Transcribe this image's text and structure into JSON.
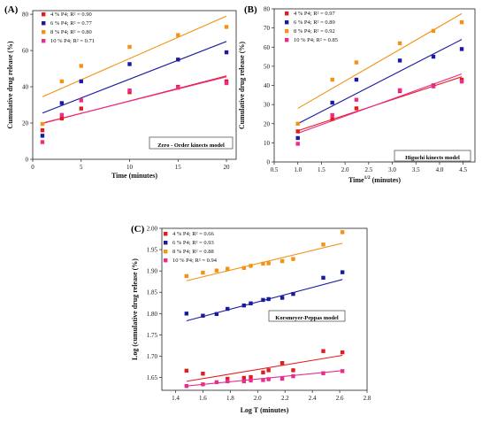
{
  "chart_data": [
    {
      "type": "scatter",
      "panel": "(A)",
      "xlabel": "Time (minutes)",
      "ylabel": "Cumulative drug release (%)",
      "xlim": [
        0,
        21
      ],
      "ylim": [
        0,
        82
      ],
      "xticks": [
        "0",
        "5",
        "10",
        "15",
        "20"
      ],
      "yticks": [
        "0",
        "20",
        "40",
        "60",
        "80"
      ],
      "model_label": "Zero - Order kinects model",
      "legend_placement": "top-left",
      "series": [
        {
          "name": "4 % P4; R² = 0.90",
          "color": "#e41a1c",
          "x": [
            1,
            3,
            5,
            10,
            15,
            20
          ],
          "y": [
            16,
            22.5,
            28,
            37,
            40,
            43
          ],
          "fit": [
            [
              1,
              19.8
            ],
            [
              20,
              46
            ]
          ]
        },
        {
          "name": "6 % P4; R² = 0.77",
          "color": "#1a1aa0",
          "x": [
            1,
            3,
            5,
            10,
            15,
            20
          ],
          "y": [
            13,
            31,
            43,
            52.5,
            55,
            59
          ],
          "fit": [
            [
              1,
              25.5
            ],
            [
              20,
              65
            ]
          ]
        },
        {
          "name": "8 % P4; R² = 0.80",
          "color": "#f39214",
          "x": [
            1,
            3,
            5,
            10,
            15,
            20
          ],
          "y": [
            19.5,
            43,
            51.5,
            62,
            68.5,
            73
          ],
          "fit": [
            [
              1,
              34.5
            ],
            [
              20,
              79
            ]
          ]
        },
        {
          "name": "10 % P4; R² = 0.71",
          "color": "#ea2c8c",
          "x": [
            1,
            3,
            5,
            10,
            15,
            20
          ],
          "y": [
            9.5,
            24.5,
            32.5,
            38,
            39.5,
            42
          ],
          "fit": [
            [
              1,
              20
            ],
            [
              20,
              45.5
            ]
          ]
        }
      ]
    },
    {
      "type": "scatter",
      "panel": "(B)",
      "xlabel": "Time",
      "xlabel_sup": "1/2",
      "xlabel_unit": "(minutes)",
      "ylabel": "Cumulative drug release (%)",
      "xlim": [
        0.5,
        4.75
      ],
      "ylim": [
        0,
        80
      ],
      "xticks": [
        "0.5",
        "1.0",
        "1.5",
        "2.0",
        "2.5",
        "3.0",
        "3.5",
        "4.0",
        "4.5"
      ],
      "yticks": [
        "0",
        "10",
        "20",
        "30",
        "40",
        "50",
        "60",
        "70",
        "80"
      ],
      "model_label": "Higuchi kinects model",
      "legend_placement": "top-left",
      "series": [
        {
          "name": "4 % P4; R² = 0.97",
          "color": "#e41a1c",
          "x": [
            1,
            1.73,
            2.24,
            3.16,
            3.87,
            4.47
          ],
          "y": [
            16,
            22.5,
            28,
            37,
            40,
            43
          ],
          "fit": [
            [
              1,
              16.3
            ],
            [
              4.47,
              44.5
            ]
          ]
        },
        {
          "name": "6 % P4; R² = 0.89",
          "color": "#1a1aa0",
          "x": [
            1,
            1.73,
            2.24,
            3.16,
            3.87,
            4.47
          ],
          "y": [
            12.5,
            31,
            43,
            53,
            55,
            59
          ],
          "fit": [
            [
              1,
              20
            ],
            [
              4.47,
              64
            ]
          ]
        },
        {
          "name": "8 % P4; R² = 0.92",
          "color": "#f39214",
          "x": [
            1,
            1.73,
            2.24,
            3.16,
            3.87,
            4.47
          ],
          "y": [
            20,
            43,
            52,
            62,
            68.5,
            73
          ],
          "fit": [
            [
              1,
              28
            ],
            [
              4.47,
              77.5
            ]
          ]
        },
        {
          "name": "10 % P4; R² = 0.85",
          "color": "#ea2c8c",
          "x": [
            1,
            1.73,
            2.24,
            3.16,
            3.87,
            4.47
          ],
          "y": [
            9.5,
            24.5,
            32.5,
            37.5,
            39.5,
            42
          ],
          "fit": [
            [
              1,
              15
            ],
            [
              4.47,
              46
            ]
          ]
        }
      ]
    },
    {
      "type": "scatter",
      "panel": "(C)",
      "xlabel": "Log T (minutes)",
      "ylabel": "Log (cumulative drug release (%)",
      "xlim": [
        1.3,
        2.8
      ],
      "ylim": [
        1.62,
        2.0
      ],
      "xticks": [
        "1.4",
        "1.6",
        "1.8",
        "2.0",
        "2.2",
        "2.4",
        "2.6",
        "2.8"
      ],
      "yticks": [
        "1.65",
        "1.70",
        "1.75",
        "1.80",
        "1.85",
        "1.90",
        "1.95",
        "2.00"
      ],
      "model_label": "Korsmeyer-Peppas model",
      "legend_placement": "top-left",
      "series": [
        {
          "name": "4 % P4; R² = 0.66",
          "color": "#e41a1c",
          "x": [
            1.48,
            1.6,
            1.78,
            1.9,
            1.95,
            2.04,
            2.08,
            2.18,
            2.26,
            2.48,
            2.62
          ],
          "y": [
            1.666,
            1.659,
            1.647,
            1.649,
            1.651,
            1.662,
            1.667,
            1.684,
            1.667,
            1.712,
            1.709
          ],
          "fit": [
            [
              1.48,
              1.641
            ],
            [
              2.62,
              1.702
            ]
          ]
        },
        {
          "name": "6 % P4; R² = 0.93",
          "color": "#1a1aa0",
          "x": [
            1.48,
            1.6,
            1.7,
            1.78,
            1.9,
            1.95,
            2.04,
            2.08,
            2.18,
            2.26,
            2.48,
            2.62
          ],
          "y": [
            1.8,
            1.795,
            1.799,
            1.811,
            1.819,
            1.824,
            1.832,
            1.834,
            1.837,
            1.846,
            1.884,
            1.897
          ],
          "fit": [
            [
              1.48,
              1.783
            ],
            [
              2.62,
              1.88
            ]
          ]
        },
        {
          "name": "8 % P4; R² = 0.88",
          "color": "#f39214",
          "x": [
            1.48,
            1.6,
            1.7,
            1.78,
            1.9,
            1.95,
            2.04,
            2.08,
            2.18,
            2.26,
            2.48,
            2.62
          ],
          "y": [
            1.888,
            1.896,
            1.901,
            1.905,
            1.907,
            1.912,
            1.917,
            1.918,
            1.923,
            1.928,
            1.962,
            1.991
          ],
          "fit": [
            [
              1.48,
              1.877
            ],
            [
              2.62,
              1.965
            ]
          ]
        },
        {
          "name": "10 % P4; R² = 0.94",
          "color": "#ea2c8c",
          "x": [
            1.48,
            1.6,
            1.7,
            1.78,
            1.9,
            1.95,
            2.04,
            2.08,
            2.18,
            2.26,
            2.48,
            2.62
          ],
          "y": [
            1.63,
            1.634,
            1.639,
            1.641,
            1.641,
            1.643,
            1.644,
            1.646,
            1.647,
            1.653,
            1.66,
            1.665
          ],
          "fit": [
            [
              1.48,
              1.63
            ],
            [
              2.62,
              1.666
            ]
          ]
        }
      ]
    }
  ]
}
